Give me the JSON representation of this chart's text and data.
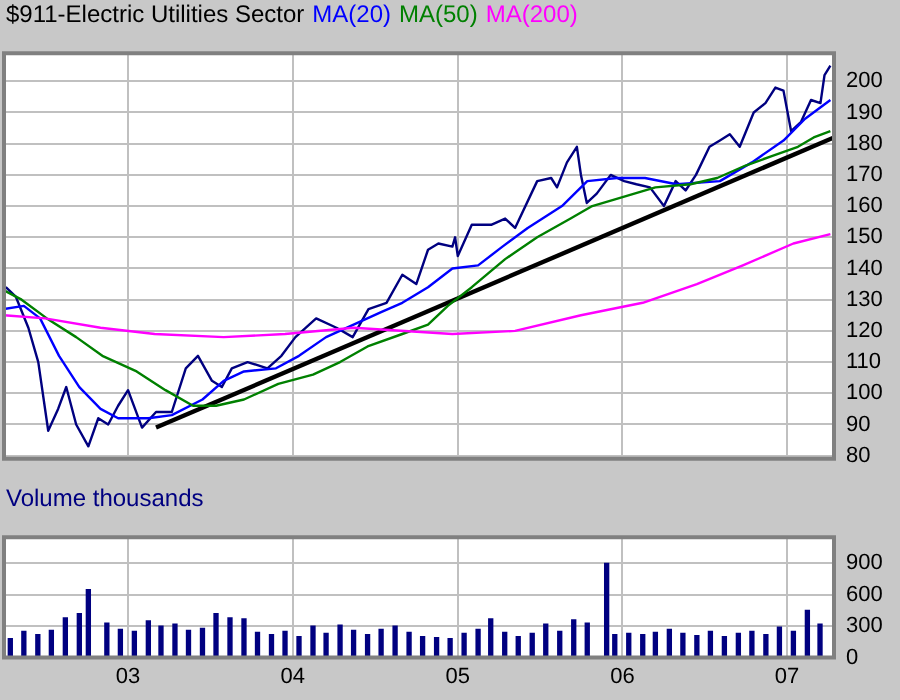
{
  "chart_data": [
    {
      "type": "line",
      "title": "$911-Electric Utilities Sector",
      "legend": "top left",
      "grid": true,
      "tick_labels": "y",
      "xlim": [
        "2002-04-01",
        "2007-04-15"
      ],
      "xticks": [
        {
          "value": "2003-01-01",
          "label": null
        },
        {
          "value": "2004-01-01",
          "label": null
        },
        {
          "value": "2005-01-01",
          "label": null
        },
        {
          "value": "2006-01-01",
          "label": null
        },
        {
          "value": "2007-01-01",
          "label": null
        }
      ],
      "ylim": [
        79,
        209
      ],
      "yticks": [
        80,
        90,
        100,
        110,
        120,
        130,
        140,
        150,
        160,
        170,
        180,
        190,
        200
      ],
      "series": [
        {
          "color": "#ff00ff",
          "name": "MA(200)",
          "x": [
            "2002-04-01",
            "2002-07-01",
            "2002-11-01",
            "2003-03-01",
            "2003-08-01",
            "2003-12-15",
            "2004-05-15",
            "2004-12-20",
            "2005-05-08",
            "2005-10-01",
            "2006-02-15",
            "2006-06-15",
            "2006-09-25",
            "2007-01-15",
            "2007-04-07"
          ],
          "values": [
            125,
            124,
            121,
            119,
            118,
            119,
            121,
            119,
            120,
            125,
            129,
            135,
            141,
            148,
            151
          ]
        },
        {
          "color": "#008000",
          "name": "MA(50)",
          "x": [
            "2002-04-01",
            "2002-05-10",
            "2002-07-05",
            "2002-09-08",
            "2002-11-05",
            "2003-01-20",
            "2003-03-25",
            "2003-05-25",
            "2003-07-15",
            "2003-09-15",
            "2003-11-30",
            "2004-02-15",
            "2004-04-15",
            "2004-06-15",
            "2004-08-31",
            "2004-10-27",
            "2004-12-10",
            "2005-02-01",
            "2005-04-16",
            "2005-06-26",
            "2005-09-08",
            "2005-10-26",
            "2006-01-05",
            "2006-03-15",
            "2006-06-01",
            "2006-07-30",
            "2006-10-01",
            "2006-11-28",
            "2007-01-25",
            "2007-03-01",
            "2007-04-07"
          ],
          "values": [
            133,
            130,
            124,
            118,
            112,
            107,
            101,
            96,
            96,
            98,
            103,
            106,
            110,
            115,
            119,
            122,
            128,
            134,
            143,
            150,
            156,
            160,
            163,
            166,
            167,
            169,
            173,
            176,
            179,
            182,
            184
          ]
        },
        {
          "color": "#0000ff",
          "name": "MA(20)",
          "x": [
            "2002-04-01",
            "2002-05-15",
            "2002-06-20",
            "2002-08-01",
            "2002-09-15",
            "2002-11-01",
            "2002-12-10",
            "2003-02-15",
            "2003-04-08",
            "2003-06-15",
            "2003-08-01",
            "2003-09-15",
            "2003-11-25",
            "2004-01-15",
            "2004-03-15",
            "2004-05-15",
            "2004-07-15",
            "2004-08-31",
            "2004-10-27",
            "2004-12-20",
            "2005-02-15",
            "2005-04-10",
            "2005-06-05",
            "2005-08-20",
            "2005-10-15",
            "2005-12-20",
            "2006-02-20",
            "2006-05-01",
            "2006-08-05",
            "2006-10-15",
            "2006-12-24",
            "2007-02-10",
            "2007-04-07"
          ],
          "values": [
            127,
            128,
            124,
            112,
            102,
            95,
            92,
            92,
            93,
            98,
            104,
            107,
            108,
            112,
            118,
            122,
            126,
            129,
            134,
            140,
            141,
            147,
            153,
            160,
            168,
            169,
            169,
            167,
            168,
            174,
            181,
            188,
            194
          ]
        },
        {
          "color": "#000080",
          "x": [
            "2002-04-05",
            "2002-04-27",
            "2002-05-25",
            "2002-06-16",
            "2002-07-08",
            "2002-07-30",
            "2002-08-17",
            "2002-09-08",
            "2002-10-05",
            "2002-10-27",
            "2002-11-18",
            "2002-12-10",
            "2003-01-01",
            "2003-02-01",
            "2003-03-04",
            "2003-04-08",
            "2003-05-09",
            "2003-06-05",
            "2003-07-06",
            "2003-07-28",
            "2003-08-19",
            "2003-09-23",
            "2003-11-06",
            "2003-12-07",
            "2004-01-07",
            "2004-02-22",
            "2004-04-07",
            "2004-05-13",
            "2004-06-17",
            "2004-07-27",
            "2004-08-31",
            "2004-10-01",
            "2004-10-27",
            "2004-11-19",
            "2004-12-20",
            "2004-12-26",
            "2005-01-01",
            "2005-02-01",
            "2005-03-16",
            "2005-04-16",
            "2005-05-08",
            "2005-06-26",
            "2005-07-27",
            "2005-08-09",
            "2005-08-31",
            "2005-09-22",
            "2005-10-01",
            "2005-10-14",
            "2005-11-05",
            "2005-12-06",
            "2006-01-05",
            "2006-02-01",
            "2006-03-03",
            "2006-04-03",
            "2006-04-29",
            "2006-05-21",
            "2006-06-13",
            "2006-07-13",
            "2006-08-05",
            "2006-08-27",
            "2006-09-18",
            "2006-10-19",
            "2006-11-14",
            "2006-12-06",
            "2006-12-24",
            "2007-01-10",
            "2007-02-01",
            "2007-02-23",
            "2007-03-16",
            "2007-03-25",
            "2007-04-07"
          ],
          "values": [
            134,
            131,
            121,
            110,
            88,
            95,
            102,
            90,
            83,
            92,
            90,
            96,
            101,
            89,
            94,
            94,
            108,
            112,
            104,
            102,
            108,
            110,
            108,
            112,
            118,
            124,
            121,
            118,
            127,
            129,
            138,
            135,
            146,
            148,
            147,
            150,
            144,
            154,
            154,
            156,
            153,
            168,
            169,
            166,
            174,
            179,
            170,
            161,
            164,
            170,
            168,
            167,
            166,
            160,
            168,
            165,
            170,
            179,
            181,
            183,
            179,
            190,
            193,
            198,
            197,
            184,
            187,
            194,
            193,
            202,
            205
          ]
        },
        {
          "type": "line",
          "color": "#000000",
          "x": [
            "2003-03-04",
            "2007-04-15"
          ],
          "values": [
            89,
            182
          ]
        }
      ]
    },
    {
      "type": "bar",
      "title": "Volume thousands",
      "grid": true,
      "color": "#000080",
      "xlim": [
        "2002-04-01",
        "2007-04-15"
      ],
      "xticks": [
        {
          "value": "2003-01-01",
          "label": "03"
        },
        {
          "value": "2004-01-01",
          "label": "04"
        },
        {
          "value": "2005-01-01",
          "label": "05"
        },
        {
          "value": "2006-01-01",
          "label": "06"
        },
        {
          "value": "2007-01-01",
          "label": "07"
        }
      ],
      "ylim": [
        0,
        1150
      ],
      "yticks": [
        0,
        300,
        600,
        900
      ],
      "x": [
        "2002-04-15",
        "2002-05-15",
        "2002-06-15",
        "2002-07-15",
        "2002-08-15",
        "2002-09-15",
        "2002-10-05",
        "2002-11-15",
        "2002-12-15",
        "2003-01-15",
        "2003-02-15",
        "2003-03-15",
        "2003-04-15",
        "2003-05-15",
        "2003-06-15",
        "2003-07-15",
        "2003-08-15",
        "2003-09-15",
        "2003-10-15",
        "2003-11-15",
        "2003-12-15",
        "2004-01-15",
        "2004-02-15",
        "2004-03-15",
        "2004-04-15",
        "2004-05-15",
        "2004-06-15",
        "2004-07-15",
        "2004-08-15",
        "2004-09-15",
        "2004-10-15",
        "2004-11-15",
        "2004-12-15",
        "2005-01-15",
        "2005-02-15",
        "2005-03-15",
        "2005-04-15",
        "2005-05-15",
        "2005-06-15",
        "2005-07-15",
        "2005-08-15",
        "2005-09-15",
        "2005-10-15",
        "2005-11-27",
        "2005-12-15",
        "2006-01-15",
        "2006-02-15",
        "2006-03-15",
        "2006-04-15",
        "2006-05-15",
        "2006-06-15",
        "2006-07-15",
        "2006-08-15",
        "2006-09-15",
        "2006-10-15",
        "2006-11-15",
        "2006-12-15",
        "2007-01-15",
        "2007-02-15",
        "2007-03-15"
      ],
      "values": [
        180,
        250,
        220,
        260,
        380,
        420,
        650,
        330,
        270,
        250,
        350,
        300,
        320,
        260,
        280,
        420,
        380,
        370,
        240,
        220,
        250,
        200,
        300,
        230,
        310,
        260,
        220,
        270,
        300,
        240,
        200,
        190,
        180,
        230,
        270,
        370,
        240,
        200,
        230,
        320,
        250,
        360,
        330,
        900,
        220,
        230,
        220,
        240,
        270,
        230,
        210,
        250,
        200,
        230,
        250,
        220,
        290,
        250,
        450,
        320
      ]
    }
  ]
}
